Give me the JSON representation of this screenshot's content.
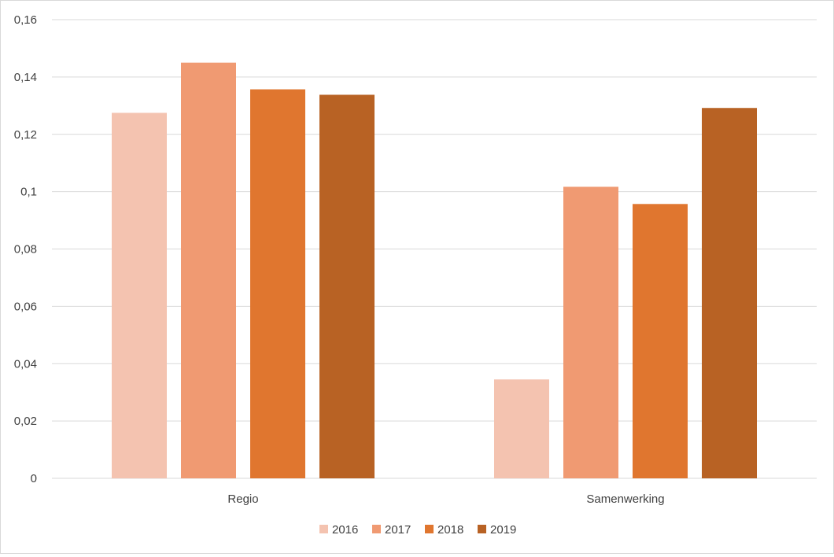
{
  "chart_data": {
    "type": "bar",
    "categories": [
      "Regio",
      "Samenwerking"
    ],
    "series": [
      {
        "name": "2016",
        "color": "#F4C3B0",
        "values": [
          0.1275,
          0.0345
        ]
      },
      {
        "name": "2017",
        "color": "#F09A72",
        "values": [
          0.145,
          0.1017
        ]
      },
      {
        "name": "2018",
        "color": "#E0762F",
        "values": [
          0.1357,
          0.0957
        ]
      },
      {
        "name": "2019",
        "color": "#B86224",
        "values": [
          0.1338,
          0.1292
        ]
      }
    ],
    "ylim": [
      0,
      0.16
    ],
    "yticks": [
      "0",
      "0,02",
      "0,04",
      "0,06",
      "0,08",
      "0,1",
      "0,12",
      "0,14",
      "0,16"
    ],
    "grid": true,
    "legend_position": "bottom",
    "title": "",
    "xlabel": "",
    "ylabel": ""
  }
}
